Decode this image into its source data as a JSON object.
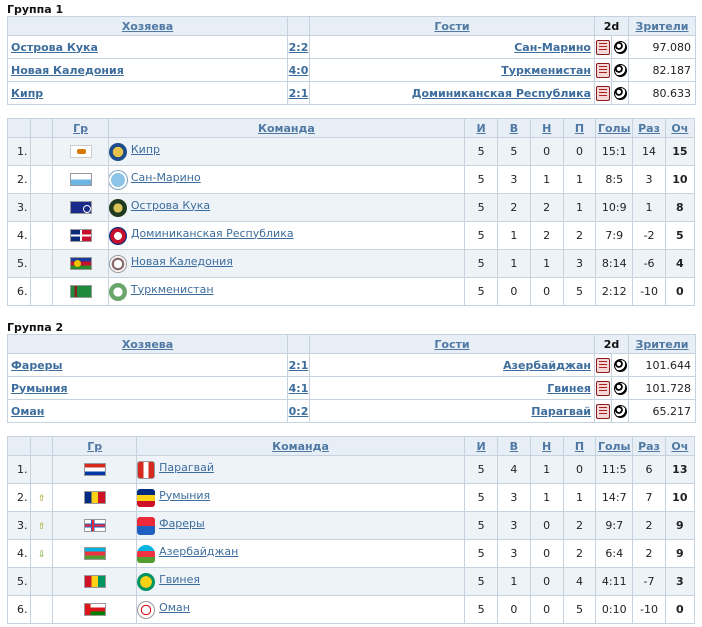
{
  "headers": {
    "home": "Хозяева",
    "away": "Гости",
    "twod": "2d",
    "audience": "Зрители",
    "gr": "Гр",
    "team": "Команда",
    "p": "И",
    "w": "В",
    "d": "Н",
    "l": "П",
    "goals": "Голы",
    "diff": "Раз",
    "pts": "Оч"
  },
  "groups": [
    {
      "title": "Группа 1",
      "matches": [
        {
          "home": "Острова Кука",
          "score": "2:2",
          "away": "Сан-Марино",
          "audience": "97.080"
        },
        {
          "home": "Новая Каледония",
          "score": "4:0",
          "away": "Туркменистан",
          "audience": "82.187"
        },
        {
          "home": "Кипр",
          "score": "2:1",
          "away": "Доминиканская Республика",
          "audience": "80.633"
        }
      ],
      "standings": [
        {
          "pos": "1.",
          "team": "Кипр",
          "p": "5",
          "w": "5",
          "d": "0",
          "l": "0",
          "goals": "15:1",
          "diff": "14",
          "pts": "15"
        },
        {
          "pos": "2.",
          "team": "Сан-Марино",
          "p": "5",
          "w": "3",
          "d": "1",
          "l": "1",
          "goals": "8:5",
          "diff": "3",
          "pts": "10"
        },
        {
          "pos": "3.",
          "team": "Острова Кука",
          "p": "5",
          "w": "2",
          "d": "2",
          "l": "1",
          "goals": "10:9",
          "diff": "1",
          "pts": "8"
        },
        {
          "pos": "4.",
          "team": "Доминиканская Республика",
          "p": "5",
          "w": "1",
          "d": "2",
          "l": "2",
          "goals": "7:9",
          "diff": "-2",
          "pts": "5"
        },
        {
          "pos": "5.",
          "team": "Новая Каледония",
          "p": "5",
          "w": "1",
          "d": "1",
          "l": "3",
          "goals": "8:14",
          "diff": "-6",
          "pts": "4"
        },
        {
          "pos": "6.",
          "team": "Туркменистан",
          "p": "5",
          "w": "0",
          "d": "0",
          "l": "5",
          "goals": "2:12",
          "diff": "-10",
          "pts": "0"
        }
      ]
    },
    {
      "title": "Группа 2",
      "matches": [
        {
          "home": "Фареры",
          "score": "2:1",
          "away": "Азербайджан",
          "audience": "101.644"
        },
        {
          "home": "Румыния",
          "score": "4:1",
          "away": "Гвинея",
          "audience": "101.728"
        },
        {
          "home": "Оман",
          "score": "0:2",
          "away": "Парагвай",
          "audience": "65.217"
        }
      ],
      "standings": [
        {
          "pos": "1.",
          "team": "Парагвай",
          "p": "5",
          "w": "4",
          "d": "1",
          "l": "0",
          "goals": "11:5",
          "diff": "6",
          "pts": "13"
        },
        {
          "pos": "2.",
          "team": "Румыния",
          "p": "5",
          "w": "3",
          "d": "1",
          "l": "1",
          "goals": "14:7",
          "diff": "7",
          "pts": "10"
        },
        {
          "pos": "3.",
          "team": "Фареры",
          "p": "5",
          "w": "3",
          "d": "0",
          "l": "2",
          "goals": "9:7",
          "diff": "2",
          "pts": "9"
        },
        {
          "pos": "4.",
          "team": "Азербайджан",
          "p": "5",
          "w": "3",
          "d": "0",
          "l": "2",
          "goals": "6:4",
          "diff": "2",
          "pts": "9"
        },
        {
          "pos": "5.",
          "team": "Гвинея",
          "p": "5",
          "w": "1",
          "d": "0",
          "l": "4",
          "goals": "4:11",
          "diff": "-7",
          "pts": "3"
        },
        {
          "pos": "6.",
          "team": "Оман",
          "p": "5",
          "w": "0",
          "d": "0",
          "l": "5",
          "goals": "0:10",
          "diff": "-10",
          "pts": "0"
        }
      ]
    }
  ]
}
